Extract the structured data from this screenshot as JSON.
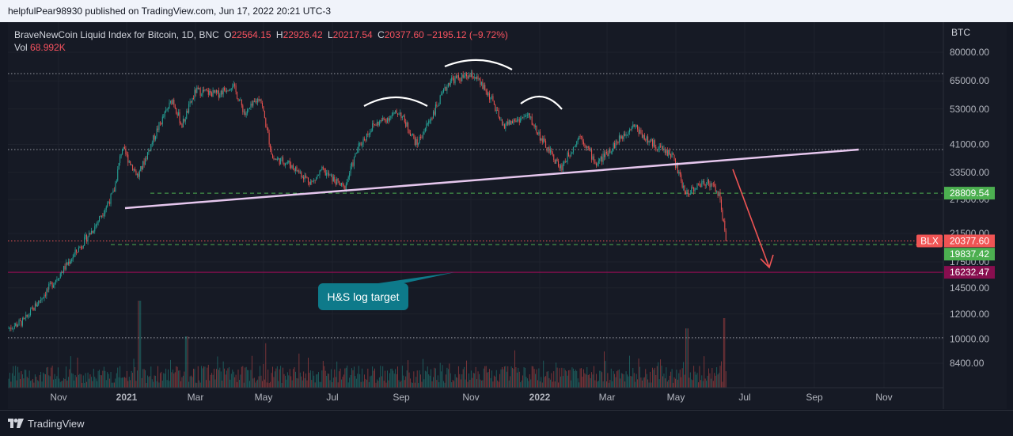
{
  "header": {
    "publisher": "helpfulPear98930 published on TradingView.com, Jun 17, 2022 20:21 UTC-3"
  },
  "legend": {
    "symbol": "BraveNewCoin Liquid Index for Bitcoin, 1D, BNC",
    "o_label": "O",
    "o": "22564.15",
    "h_label": "H",
    "h": "22926.42",
    "l_label": "L",
    "l": "20217.54",
    "c_label": "C",
    "c": "20377.60",
    "change": "−2195.12 (−9.72%)",
    "vol_label": "Vol",
    "vol": "68.992K"
  },
  "footer": {
    "brand": "TradingView"
  },
  "annotation": {
    "text": "H&S log target"
  },
  "colors": {
    "up": "#26a69a",
    "down": "#ef5350",
    "bg": "#161a25",
    "neckline": "#e6c7ee",
    "arrow": "#f05454"
  },
  "chart_data": {
    "type": "candlestick",
    "currency": "BTC",
    "scale": "log",
    "ylim": [
      7200,
      100000
    ],
    "x_ticks": [
      "Nov",
      "2021",
      "Mar",
      "May",
      "Jul",
      "Sep",
      "Nov",
      "2022",
      "Mar",
      "May",
      "Jul",
      "Sep",
      "Nov"
    ],
    "y_ticks": [
      "80000.00",
      "65000.00",
      "53000.00",
      "41000.00",
      "33500.00",
      "27500.00",
      "21500.00",
      "17500.00",
      "14500.00",
      "12000.00",
      "10000.00",
      "8400.00"
    ],
    "price_labels": [
      {
        "text": "28809.54",
        "value": 28809.54,
        "color": "#4caf50"
      },
      {
        "text": "BLX",
        "value": 20377.6,
        "color": "#f05454"
      },
      {
        "text": "20377.60",
        "value": 20377.6,
        "color": "#f05454"
      },
      {
        "text": "19837.42",
        "value": 19837.42,
        "color": "#4caf50"
      },
      {
        "text": "16232.47",
        "value": 16232.47,
        "color": "#880e4f"
      }
    ],
    "horizontal_lines": [
      {
        "value": 68500,
        "style": "dotted",
        "color": "#9598a1"
      },
      {
        "value": 39500,
        "style": "dotted",
        "color": "#9598a1"
      },
      {
        "value": 10100,
        "style": "dotted",
        "color": "#9598a1"
      },
      {
        "value": 28809.54,
        "style": "dashed",
        "color": "#4caf50"
      },
      {
        "value": 19837.42,
        "style": "dashed",
        "color": "#4caf50"
      },
      {
        "value": 16232.47,
        "style": "solid",
        "color": "#880e4f"
      },
      {
        "value": 20377.6,
        "style": "dotted",
        "color": "#f05454"
      }
    ],
    "close_series": [
      [
        "2020-10-01",
        10800
      ],
      [
        "2020-10-15",
        11400
      ],
      [
        "2020-11-01",
        13800
      ],
      [
        "2020-11-15",
        16000
      ],
      [
        "2020-12-01",
        19200
      ],
      [
        "2020-12-15",
        22500
      ],
      [
        "2021-01-01",
        29000
      ],
      [
        "2021-01-08",
        40000
      ],
      [
        "2021-01-22",
        32500
      ],
      [
        "2021-02-08",
        46000
      ],
      [
        "2021-02-21",
        57000
      ],
      [
        "2021-03-01",
        47000
      ],
      [
        "2021-03-13",
        60500
      ],
      [
        "2021-04-01",
        59000
      ],
      [
        "2021-04-14",
        63500
      ],
      [
        "2021-04-25",
        51000
      ],
      [
        "2021-05-08",
        58000
      ],
      [
        "2021-05-19",
        37000
      ],
      [
        "2021-06-01",
        36000
      ],
      [
        "2021-06-22",
        31000
      ],
      [
        "2021-07-01",
        34000
      ],
      [
        "2021-07-20",
        29800
      ],
      [
        "2021-08-01",
        40000
      ],
      [
        "2021-08-14",
        47000
      ],
      [
        "2021-09-06",
        52000
      ],
      [
        "2021-09-21",
        41000
      ],
      [
        "2021-10-01",
        48000
      ],
      [
        "2021-10-20",
        65500
      ],
      [
        "2021-11-10",
        67500
      ],
      [
        "2021-11-25",
        57000
      ],
      [
        "2021-12-04",
        47000
      ],
      [
        "2021-12-27",
        50500
      ],
      [
        "2022-01-10",
        41000
      ],
      [
        "2022-01-24",
        34500
      ],
      [
        "2022-02-10",
        44000
      ],
      [
        "2022-02-24",
        35500
      ],
      [
        "2022-03-28",
        47500
      ],
      [
        "2022-04-10",
        42000
      ],
      [
        "2022-05-01",
        38000
      ],
      [
        "2022-05-12",
        28800
      ],
      [
        "2022-05-31",
        31500
      ],
      [
        "2022-06-10",
        29000
      ],
      [
        "2022-06-17",
        20377.6
      ]
    ]
  }
}
